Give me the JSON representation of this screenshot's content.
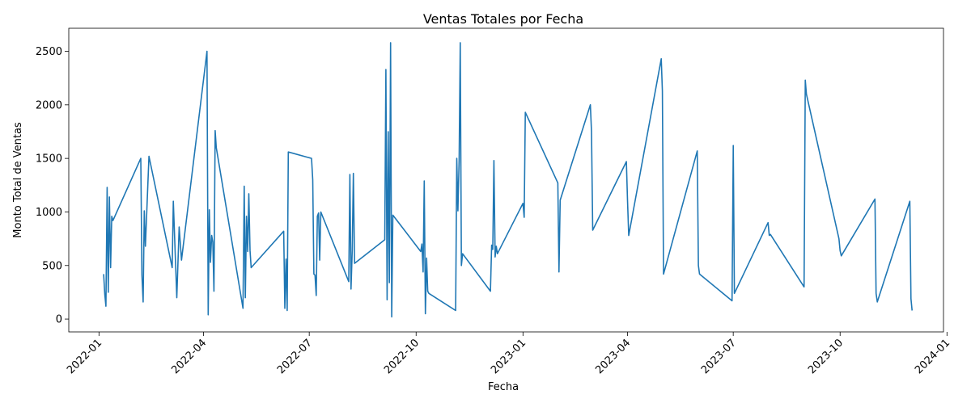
{
  "chart_data": {
    "type": "line",
    "title": "Ventas Totales por Fecha",
    "xlabel": "Fecha",
    "ylabel": "Monto Total de Ventas",
    "x_type": "date",
    "xlim": [
      "2021-12-06",
      "2023-12-29"
    ],
    "ylim": [
      -120,
      2715
    ],
    "x_ticks": [
      "2022-01-01",
      "2022-04-01",
      "2022-07-01",
      "2022-10-01",
      "2023-01-01",
      "2023-04-01",
      "2023-07-01",
      "2023-10-01",
      "2024-01-01"
    ],
    "x_tick_labels": [
      "2022-01",
      "2022-04",
      "2022-07",
      "2022-10",
      "2023-01",
      "2023-04",
      "2023-07",
      "2023-10",
      "2024-01"
    ],
    "y_ticks": [
      0,
      500,
      1000,
      1500,
      2000,
      2500
    ],
    "y_tick_labels": [
      "0",
      "500",
      "1000",
      "1500",
      "2000",
      "2500"
    ],
    "grid": false,
    "legend": "none",
    "line_color": "#1f77b4",
    "series": [
      {
        "x": [
          "2022-01-05",
          "2022-01-06",
          "2022-01-07",
          "2022-01-08",
          "2022-01-09",
          "2022-01-10",
          "2022-01-11",
          "2022-01-12",
          "2022-01-13",
          "2022-02-06",
          "2022-02-07",
          "2022-02-08",
          "2022-02-09",
          "2022-02-10",
          "2022-02-13",
          "2022-03-05",
          "2022-03-06",
          "2022-03-09",
          "2022-03-11",
          "2022-03-13",
          "2022-04-04",
          "2022-04-05",
          "2022-04-06",
          "2022-04-07",
          "2022-04-08",
          "2022-04-09",
          "2022-04-10",
          "2022-04-11",
          "2022-04-12",
          "2022-05-05",
          "2022-05-06",
          "2022-05-07",
          "2022-05-08",
          "2022-05-09",
          "2022-05-10",
          "2022-05-11",
          "2022-05-12",
          "2022-06-09",
          "2022-06-10",
          "2022-06-11",
          "2022-06-12",
          "2022-06-13",
          "2022-07-03",
          "2022-07-04",
          "2022-07-05",
          "2022-07-06",
          "2022-07-07",
          "2022-07-08",
          "2022-07-09",
          "2022-07-10",
          "2022-07-11",
          "2022-08-04",
          "2022-08-05",
          "2022-08-06",
          "2022-08-07",
          "2022-08-08",
          "2022-08-09",
          "2022-09-04",
          "2022-09-05",
          "2022-09-06",
          "2022-09-07",
          "2022-09-08",
          "2022-09-09",
          "2022-09-10",
          "2022-09-11",
          "2022-10-05",
          "2022-10-06",
          "2022-10-07",
          "2022-10-08",
          "2022-10-09",
          "2022-10-10",
          "2022-10-11",
          "2022-10-12",
          "2022-11-04",
          "2022-11-05",
          "2022-11-06",
          "2022-11-07",
          "2022-11-08",
          "2022-11-09",
          "2022-11-10",
          "2022-12-04",
          "2022-12-05",
          "2022-12-06",
          "2022-12-07",
          "2022-12-08",
          "2022-12-09",
          "2022-12-10",
          "2023-01-01",
          "2023-01-02",
          "2023-01-03",
          "2023-01-31",
          "2023-02-01",
          "2023-02-02",
          "2023-02-28",
          "2023-03-01",
          "2023-03-02",
          "2023-03-31",
          "2023-04-01",
          "2023-04-02",
          "2023-04-30",
          "2023-05-01",
          "2023-05-02",
          "2023-05-31",
          "2023-06-01",
          "2023-06-02",
          "2023-06-30",
          "2023-07-01",
          "2023-07-02",
          "2023-07-31",
          "2023-08-01",
          "2023-08-02",
          "2023-08-31",
          "2023-09-01",
          "2023-09-02",
          "2023-09-30",
          "2023-10-01",
          "2023-10-02",
          "2023-10-31",
          "2023-11-01",
          "2023-11-02",
          "2023-11-30",
          "2023-12-01",
          "2023-12-02"
        ],
        "y": [
          420,
          230,
          120,
          1230,
          250,
          1140,
          480,
          960,
          920,
          1500,
          410,
          160,
          1010,
          680,
          1520,
          480,
          1100,
          200,
          860,
          550,
          2500,
          40,
          1020,
          530,
          780,
          720,
          260,
          1760,
          1600,
          100,
          1240,
          200,
          960,
          630,
          1170,
          640,
          480,
          820,
          100,
          560,
          80,
          1560,
          1500,
          1300,
          420,
          410,
          220,
          960,
          990,
          550,
          1000,
          350,
          1350,
          280,
          640,
          1360,
          520,
          740,
          2330,
          180,
          1750,
          340,
          2580,
          20,
          970,
          630,
          700,
          440,
          1290,
          50,
          570,
          260,
          240,
          80,
          1500,
          1010,
          1480,
          2580,
          500,
          610,
          260,
          690,
          650,
          1480,
          580,
          680,
          610,
          1080,
          950,
          1930,
          1270,
          440,
          1110,
          2000,
          1750,
          830,
          1470,
          1110,
          780,
          2430,
          2130,
          420,
          1570,
          500,
          420,
          170,
          1620,
          240,
          900,
          780,
          790,
          300,
          2230,
          2100,
          750,
          640,
          590,
          1120,
          240,
          160,
          1100,
          190,
          80
        ]
      }
    ]
  }
}
